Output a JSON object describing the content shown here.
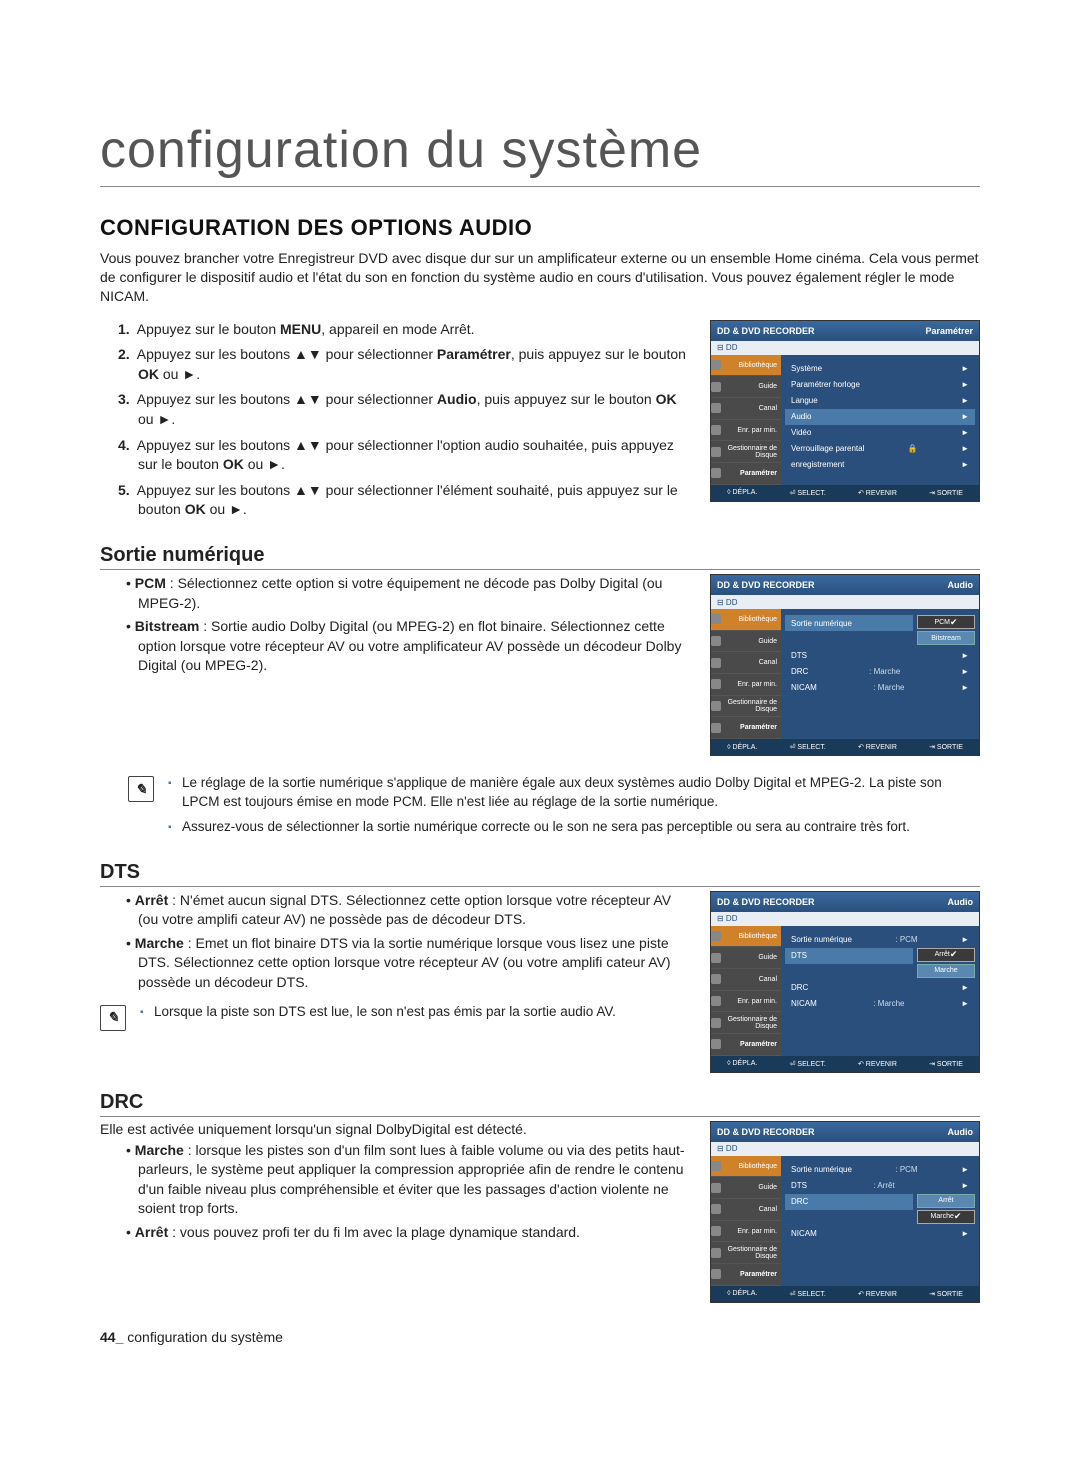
{
  "chapter_title": "configuration du système",
  "section_title": "CONFIGURATION DES OPTIONS AUDIO",
  "intro": "Vous pouvez brancher votre Enregistreur DVD avec disque dur sur un amplificateur externe ou un ensemble Home cinéma. Cela vous permet de configurer le dispositif audio et l'état du son en fonction du système audio en cours d'utilisation. Vous pouvez également régler le mode NICAM.",
  "steps": [
    {
      "n": "1.",
      "t": "Appuyez sur le bouton <b>MENU</b>, appareil en mode Arrêt."
    },
    {
      "n": "2.",
      "t": "Appuyez sur les boutons ▲▼ pour sélectionner <b>Paramétrer</b>, puis appuyez sur le bouton <b>OK</b> ou ►."
    },
    {
      "n": "3.",
      "t": "Appuyez sur les boutons ▲▼ pour sélectionner <b>Audio</b>, puis appuyez sur le bouton <b>OK</b> ou ►."
    },
    {
      "n": "4.",
      "t": "Appuyez sur les boutons ▲▼ pour sélectionner l'option audio souhaitée, puis appuyez sur le bouton <b>OK</b> ou ►."
    },
    {
      "n": "5.",
      "t": "Appuyez sur les boutons ▲▼ pour sélectionner l'élément souhaité, puis appuyez sur le bouton <b>OK</b> ou ►."
    }
  ],
  "sortie_numerique": {
    "title": "Sortie numérique",
    "items": [
      {
        "lead": "PCM",
        "text": ": Sélectionnez cette option si votre équipement ne décode pas Dolby Digital (ou MPEG-2)."
      },
      {
        "lead": "Bitstream",
        "text": ": Sortie audio Dolby Digital (ou MPEG-2) en flot binaire. Sélectionnez cette option lorsque votre récepteur AV ou votre amplificateur AV possède un décodeur Dolby Digital (ou MPEG-2)."
      }
    ],
    "notes": [
      "Le réglage de la sortie numérique s'applique de manière égale aux deux systèmes audio Dolby Digital et MPEG-2. La piste son LPCM est toujours émise en mode PCM. Elle n'est liée au réglage de la sortie numérique.",
      "Assurez-vous de sélectionner la sortie numérique correcte ou le son ne sera pas perceptible ou sera au contraire très fort."
    ]
  },
  "dts": {
    "title": "DTS",
    "items": [
      {
        "lead": "Arrêt",
        "text": ": N'émet aucun signal DTS. Sélectionnez cette option lorsque votre récepteur AV (ou votre amplifi cateur AV) ne possède pas de décodeur DTS."
      },
      {
        "lead": "Marche",
        "text": ": Emet un flot binaire DTS via la sortie numérique lorsque vous lisez une piste DTS. Sélectionnez cette option lorsque votre récepteur AV (ou votre amplifi cateur AV) possède un décodeur DTS."
      }
    ],
    "notes": [
      "Lorsque la piste son DTS est lue, le son n'est pas émis par la sortie audio AV."
    ]
  },
  "drc": {
    "title": "DRC",
    "intro": "Elle est activée uniquement lorsqu'un signal DolbyDigital est détecté.",
    "items": [
      {
        "lead": "Marche",
        "text": ": lorsque les pistes son d'un film sont lues à faible volume ou via des petits haut-parleurs, le système peut appliquer la compression appropriée afin de rendre le contenu d'un faible niveau plus compréhensible et éviter que les passages d'action violente ne soient trop forts."
      },
      {
        "lead": "Arrêt",
        "text": ": vous pouvez profi ter du fi lm avec la plage dynamique standard."
      }
    ]
  },
  "footer": {
    "page": "44_",
    "text": " configuration du système"
  },
  "osd_common": {
    "title": "DD & DVD RECORDER",
    "sub_dd": "DD",
    "sidebar": [
      "Bibliothèque",
      "Guide",
      "Canal",
      "Enr. par min.",
      "Gestionnaire de Disque",
      "Paramétrer"
    ],
    "footer_hints": [
      "◊ DÉPLA.",
      "⏎ SELECT.",
      "↶ REVENIR",
      "⇥ SORTIE"
    ]
  },
  "osd1": {
    "crumb": "Paramétrer",
    "rows": [
      "Système",
      "Paramétrer horloge",
      "Langue",
      "Audio",
      "Vidéo",
      "Verrouillage parental",
      "enregistrement"
    ],
    "hl": 3,
    "lock_row": 5
  },
  "osd2": {
    "crumb": "Audio",
    "rows": [
      {
        "l": "Sortie numérique",
        "opts": [
          "PCM",
          "Bitstream"
        ],
        "sel": 0
      },
      {
        "l": "DTS",
        "v": ""
      },
      {
        "l": "DRC",
        "v": ": Marche"
      },
      {
        "l": "NICAM",
        "v": ": Marche"
      }
    ]
  },
  "osd3": {
    "crumb": "Audio",
    "rows": [
      {
        "l": "Sortie numérique",
        "v": ": PCM"
      },
      {
        "l": "DTS",
        "opts": [
          "Arrêt",
          "Marche"
        ],
        "sel": 0
      },
      {
        "l": "DRC",
        "v": ""
      },
      {
        "l": "NICAM",
        "v": ": Marche"
      }
    ]
  },
  "osd4": {
    "crumb": "Audio",
    "rows": [
      {
        "l": "Sortie numérique",
        "v": ": PCM"
      },
      {
        "l": "DTS",
        "v": ": Arrêt"
      },
      {
        "l": "DRC",
        "opts": [
          "Arrêt",
          "Marche"
        ],
        "sel": 1
      },
      {
        "l": "NICAM",
        "v": ""
      }
    ]
  },
  "colors": {
    "osd_title_grad_top": "#3a6aa0",
    "osd_title_grad_bot": "#2a4f7c",
    "osd_body_bg": "#2a4f7c",
    "osd_side_bg": "#4a4a4a",
    "osd_side_sel": "#d0822a",
    "osd_row_hl": "#4a7aa8",
    "osd_footer_bg": "#1a3a5a",
    "note_bullet": "#4a7a9a"
  }
}
